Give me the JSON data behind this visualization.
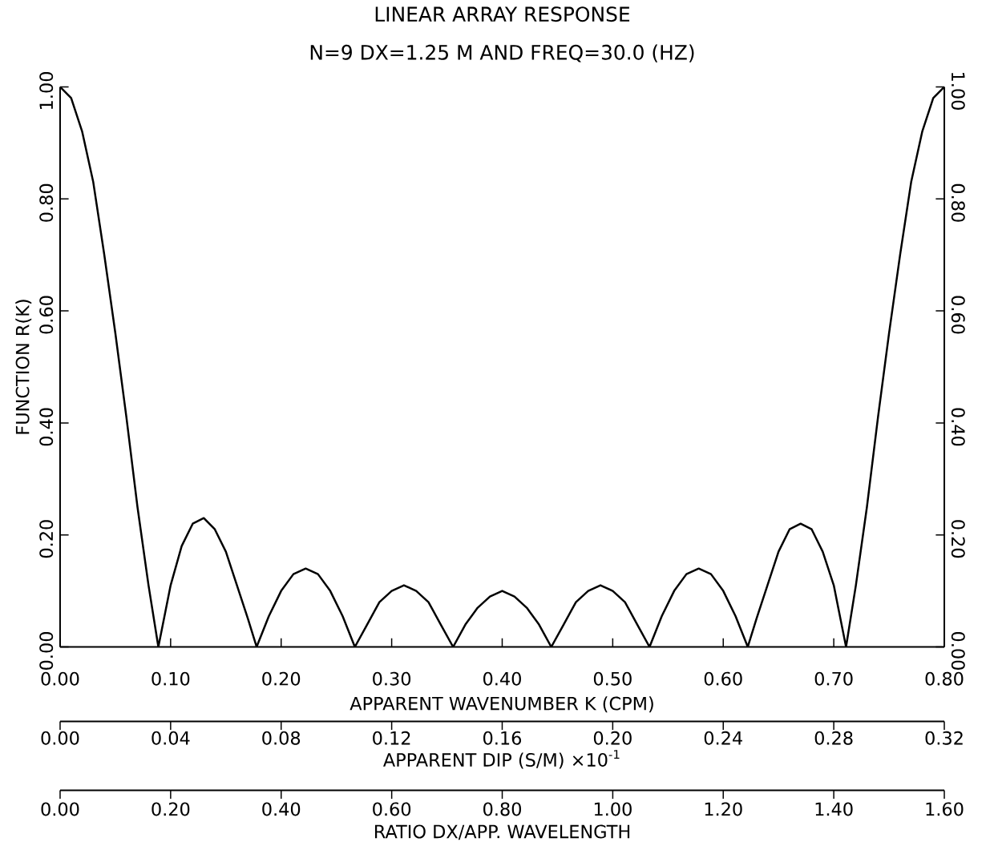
{
  "chart_data": {
    "type": "line",
    "title": "LINEAR ARRAY RESPONSE",
    "subtitle": "N=9    DX=1.25 M  AND    FREQ=30.0 (HZ)",
    "xlabel": "APPARENT WAVENUMBER K (CPM)",
    "ylabel": "FUNCTION R(K)",
    "x2label": "APPARENT DIP (S/M)  ×10$^{-1}$",
    "annotations": [
      "0.00",
      "0.20",
      "0.40",
      "0.60",
      "0.80",
      "1.00",
      "1.20",
      "1.40",
      "1.60",
      "RATIO DX/APP. WAVELENGTH"
    ],
    "xlim": [
      0,
      0.8
    ],
    "xticks": [
      {
        "value": 0,
        "label": "0.00"
      },
      {
        "value": 0.1,
        "label": "0.10"
      },
      {
        "value": 0.2,
        "label": "0.20"
      },
      {
        "value": 0.3,
        "label": "0.30"
      },
      {
        "value": 0.4,
        "label": "0.40"
      },
      {
        "value": 0.5,
        "label": "0.50"
      },
      {
        "value": 0.6,
        "label": "0.60"
      },
      {
        "value": 0.7,
        "label": "0.70"
      },
      {
        "value": 0.8,
        "label": "0.80"
      }
    ],
    "x2lim": [
      0,
      0.32
    ],
    "x2ticks": [
      {
        "value": 0,
        "label": "0.00"
      },
      {
        "value": 0.04,
        "label": "0.04"
      },
      {
        "value": 0.08,
        "label": "0.08"
      },
      {
        "value": 0.12,
        "label": "0.12"
      },
      {
        "value": 0.16,
        "label": "0.16"
      },
      {
        "value": 0.2,
        "label": "0.20"
      },
      {
        "value": 0.24,
        "label": "0.24"
      },
      {
        "value": 0.28,
        "label": "0.28"
      },
      {
        "value": 0.32,
        "label": "0.32"
      }
    ],
    "ylim": [
      0,
      1
    ],
    "yticks": [
      {
        "value": 0,
        "label": "0.00"
      },
      {
        "value": 0.2,
        "label": "0.20"
      },
      {
        "value": 0.4,
        "label": "0.40"
      },
      {
        "value": 0.6,
        "label": "0.60"
      },
      {
        "value": 0.8,
        "label": "0.80"
      },
      {
        "value": 1.0,
        "label": "1.00"
      }
    ],
    "y2lim": [
      0,
      1
    ],
    "y2ticks": [
      {
        "value": 0,
        "label": "0.00"
      },
      {
        "value": 0.2,
        "label": "0.20"
      },
      {
        "value": 0.4,
        "label": "0.40"
      },
      {
        "value": 0.6,
        "label": "0.60"
      },
      {
        "value": 0.8,
        "label": "0.80"
      },
      {
        "value": 1.0,
        "label": "1.00"
      }
    ],
    "series": [
      {
        "color": "#000000",
        "x": [
          0,
          0.01,
          0.02,
          0.03,
          0.04,
          0.05,
          0.06,
          0.07,
          0.08,
          0.0889,
          0.1,
          0.11,
          0.12,
          0.13,
          0.14,
          0.15,
          0.16,
          0.17,
          0.1778,
          0.1889,
          0.2,
          0.2111,
          0.2222,
          0.2333,
          0.2444,
          0.2556,
          0.2667,
          0.2778,
          0.2889,
          0.3,
          0.3111,
          0.3222,
          0.3333,
          0.3444,
          0.3556,
          0.3667,
          0.3778,
          0.3889,
          0.4,
          0.4111,
          0.4222,
          0.4333,
          0.4444,
          0.4556,
          0.4667,
          0.4778,
          0.4889,
          0.5,
          0.5111,
          0.5222,
          0.5333,
          0.5444,
          0.5556,
          0.5667,
          0.5778,
          0.5889,
          0.6,
          0.6111,
          0.6222,
          0.63,
          0.64,
          0.65,
          0.66,
          0.67,
          0.68,
          0.69,
          0.7,
          0.7111,
          0.72,
          0.73,
          0.74,
          0.75,
          0.76,
          0.77,
          0.78,
          0.79,
          0.8
        ],
        "values": [
          1,
          0.98,
          0.92,
          0.83,
          0.7,
          0.56,
          0.41,
          0.25,
          0.11,
          0,
          0.11,
          0.18,
          0.22,
          0.23,
          0.21,
          0.17,
          0.11,
          0.05,
          0,
          0.055,
          0.1,
          0.13,
          0.14,
          0.13,
          0.1,
          0.055,
          0,
          0.04,
          0.08,
          0.1,
          0.11,
          0.1,
          0.08,
          0.04,
          0,
          0.04,
          0.07,
          0.09,
          0.1,
          0.09,
          0.07,
          0.04,
          0,
          0.04,
          0.08,
          0.1,
          0.11,
          0.1,
          0.08,
          0.04,
          0,
          0.055,
          0.1,
          0.13,
          0.14,
          0.13,
          0.1,
          0.055,
          0,
          0.05,
          0.11,
          0.17,
          0.21,
          0.22,
          0.21,
          0.17,
          0.11,
          0,
          0.11,
          0.25,
          0.41,
          0.56,
          0.7,
          0.83,
          0.92,
          0.98,
          1
        ]
      }
    ]
  }
}
